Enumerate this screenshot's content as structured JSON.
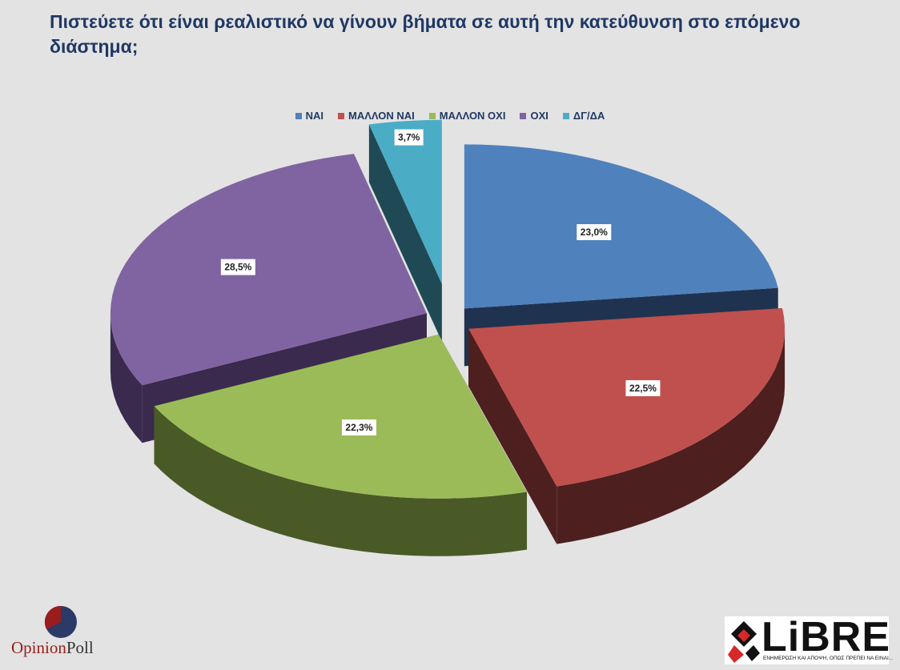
{
  "title": "Πιστεύετε ότι είναι ρεαλιστικό να γίνουν βήματα σε αυτή την κατεύθυνση στο επόμενο διάστημα;",
  "chart_data": {
    "type": "pie",
    "style": "3d-exploded",
    "legend_position": "top",
    "categories": [
      "ΝΑΙ",
      "ΜΑΛΛΟΝ ΝΑΙ",
      "ΜΑΛΛΟΝ ΟΧΙ",
      "ΟΧΙ",
      "ΔΓ/ΔΑ"
    ],
    "values": [
      23.0,
      22.5,
      22.3,
      28.5,
      3.7
    ],
    "labels": [
      "23,0%",
      "22,5%",
      "22,3%",
      "28,5%",
      "3,7%"
    ],
    "colors": [
      "#4f81bd",
      "#c0504d",
      "#9bbb59",
      "#8064a2",
      "#4bacc6"
    ],
    "side_colors": [
      "#1f3350",
      "#4e1f1f",
      "#495a27",
      "#3a2a4e",
      "#1f4a55"
    ]
  },
  "branding": {
    "opinion_part1": "Opinion",
    "opinion_part2": "Poll",
    "libre_word": "LiBRE",
    "libre_tagline": "ΕΝΗΜΕΡΩΣΗ ΚΑΙ ΑΠΟΨΗ, ΟΠΩΣ ΠΡΕΠΕΙ ΝΑ ΕΙΝΑΙ..."
  }
}
